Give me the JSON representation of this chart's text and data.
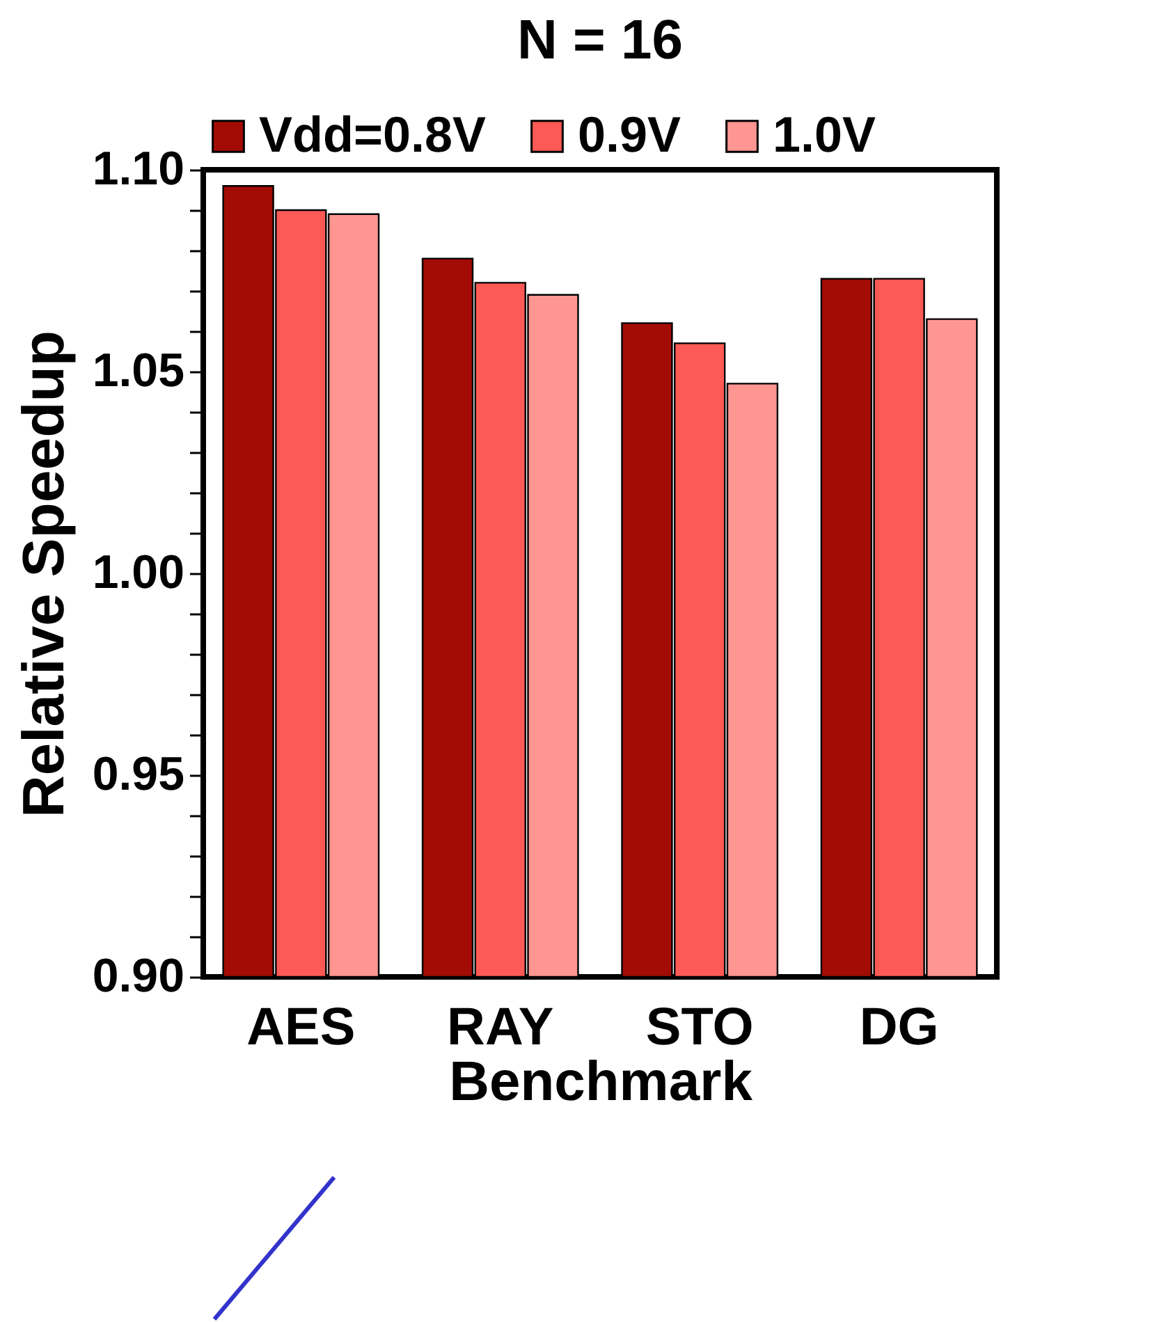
{
  "chart_data": {
    "type": "bar",
    "title": "N = 16",
    "xlabel": "Benchmark",
    "ylabel": "Relative Speedup",
    "categories": [
      "AES",
      "RAY",
      "STO",
      "DG"
    ],
    "series": [
      {
        "name": "Vdd=0.8V",
        "color": "#a30c04",
        "values": [
          1.096,
          1.078,
          1.062,
          1.073
        ]
      },
      {
        "name": "0.9V",
        "color": "#fd5a55",
        "values": [
          1.09,
          1.072,
          1.057,
          1.073
        ]
      },
      {
        "name": "1.0V",
        "color": "#ff9691",
        "values": [
          1.089,
          1.069,
          1.047,
          1.063
        ]
      }
    ],
    "ylim": [
      0.9,
      1.1
    ],
    "yticks": [
      "0.90",
      {
        "value": 0.91,
        "label": null
      },
      {
        "value": 0.92,
        "label": null
      },
      {
        "value": 0.93,
        "label": null
      },
      {
        "value": 0.94,
        "label": null
      },
      {
        "value": 0.95,
        "label": "0.95"
      },
      {
        "value": 0.96,
        "label": null
      },
      {
        "value": 0.97,
        "label": null
      },
      {
        "value": 0.98,
        "label": null
      },
      {
        "value": 0.99,
        "label": null
      },
      {
        "value": 1.0,
        "label": "1.00"
      },
      {
        "value": 1.01,
        "label": null
      },
      {
        "value": 1.02,
        "label": null
      },
      {
        "value": 1.03,
        "label": null
      },
      {
        "value": 1.04,
        "label": null
      },
      {
        "value": 1.05,
        "label": "1.05"
      },
      {
        "value": 1.06,
        "label": null
      },
      {
        "value": 1.07,
        "label": null
      },
      {
        "value": 1.08,
        "label": null
      },
      {
        "value": 1.09,
        "label": null
      },
      {
        "value": 1.1,
        "label": "1.10"
      }
    ],
    "grid": false,
    "legend": "top"
  }
}
